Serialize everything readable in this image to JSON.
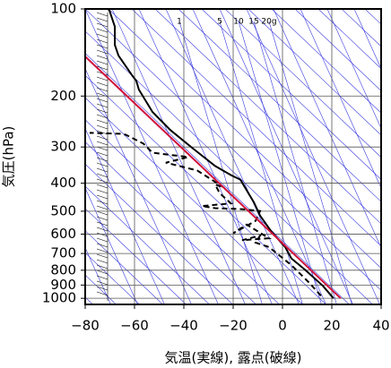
{
  "chart_data": {
    "type": "line",
    "xlabel": "気温(実線), 露点(破線)",
    "ylabel": "気圧(hPa)",
    "xlim": [
      -80,
      40
    ],
    "xticks": [
      {
        "value": -80,
        "label": "−80"
      },
      {
        "value": -60,
        "label": "−60"
      },
      {
        "value": -40,
        "label": "−40"
      },
      {
        "value": -20,
        "label": "−20"
      },
      0,
      20,
      40
    ],
    "ylim": [
      100,
      1050
    ],
    "yticks": [
      100,
      200,
      300,
      400,
      500,
      600,
      700,
      800,
      900,
      1000
    ],
    "y_log": true,
    "y_inverted": true,
    "grid": true,
    "mixing_ratio_labels": [
      "1",
      "5",
      "10",
      "15",
      "20g"
    ],
    "series": [
      {
        "color": "#000000",
        "style": "solid",
        "x": [
          20.7,
          16.4,
          9.1,
          3.6,
          1.1,
          0,
          -4.7,
          -9.1,
          -11.6,
          -17.1,
          -20.7,
          -27.3,
          -36.4,
          -45.5,
          -52.7,
          -58.2,
          -59.3,
          -60.7,
          -66.5,
          -68,
          -68,
          -70.2,
          -70.9
        ],
        "y": [
          1000,
          906,
          796,
          728,
          665,
          650,
          585,
          518,
          466,
          389,
          376,
          349,
          303,
          262,
          227,
          190,
          177,
          171,
          145,
          133,
          115,
          101,
          100
        ]
      },
      {
        "color": "#000000",
        "style": "dashed",
        "x": [
          15.6,
          10.9,
          3.6,
          -5.5,
          -10.9,
          -9.1,
          -16.4,
          -5.5,
          -14.5,
          -20,
          -10.9,
          -9.1,
          -16.4,
          -27.3,
          -32.7,
          -20.9,
          -25.5,
          -27.3,
          -23.6,
          -34.5,
          -41.8,
          -47.3,
          -38.2,
          -52.7,
          -56.4,
          -63.6,
          -65.5,
          -78.2
        ],
        "y": [
          980,
          885,
          768,
          665,
          642,
          607,
          630,
          620,
          556,
          596,
          540,
          499,
          492,
          488,
          480,
          470,
          433,
          404,
          415,
          362,
          349,
          340,
          325,
          314,
          292,
          272,
          270,
          268
        ]
      },
      {
        "color": "#d0103a",
        "style": "solid",
        "x": [
          -80,
          23.6
        ],
        "y": [
          146,
          1000
        ]
      }
    ]
  }
}
